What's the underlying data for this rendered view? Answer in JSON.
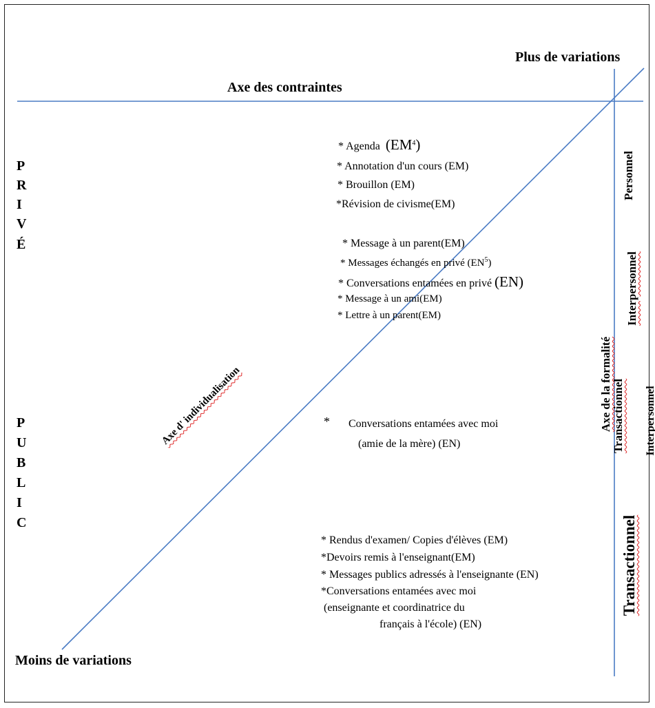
{
  "top_right_label": "Plus de variations",
  "horizontal_axis_label": "Axe des contraintes",
  "bottom_left_label": "Moins de variations",
  "diagonal_axis_label": "Axe d' individualisation",
  "vertical_axis_label": "Axe de la formalité",
  "prive_letters": [
    "P",
    "R",
    "I",
    "V",
    "É"
  ],
  "public_letters": [
    "P",
    "U",
    "B",
    "L",
    "I",
    "C"
  ],
  "right_categories": {
    "personnel": "Personnel",
    "interpersonnel": "Interpersonnel",
    "transactionnel_mid": "Transactionnel",
    "interpersonnel_edge": "Interpersonnel",
    "transactionnel_bottom": "Transactionnel"
  },
  "group1": {
    "agenda_prefix": "* Agenda",
    "agenda_em": "(EM",
    "agenda_sup": "4",
    "agenda_close": ")",
    "annotation": "* Annotation d'un cours (EM)",
    "brouillon": "* Brouillon (EM)",
    "revision": "*Révision de civisme(EM)"
  },
  "group2": {
    "message_parent": "* Message à un parent(EM)",
    "messages_prive": "* Messages échangés en privé (EN",
    "messages_prive_sup": "5",
    "messages_prive_close": ")",
    "conversations_prive": "* Conversations entamées en privé",
    "conversations_prive_en": "(EN)",
    "message_ami": "* Message à un ami(EM)",
    "lettre_parent": "* Lettre à un parent(EM)"
  },
  "group3": {
    "star": "*",
    "line1": "Conversations entamées avec moi",
    "line2": "(amie de la mère) (EN)"
  },
  "group4": {
    "rendus": "* Rendus d'examen/ Copies d'élèves (EM)",
    "devoirs": "*Devoirs remis à l'enseignant(EM)",
    "messages_publics": "* Messages publics adressés à l'enseignante (EN)",
    "conversations_1": "*Conversations entamées avec moi",
    "conversations_2": "(enseignante et coordinatrice du",
    "conversations_3": "français à l'école) (EN)"
  },
  "colors": {
    "axis_line": "#4a7bc4",
    "squiggle": "#dd2222"
  }
}
